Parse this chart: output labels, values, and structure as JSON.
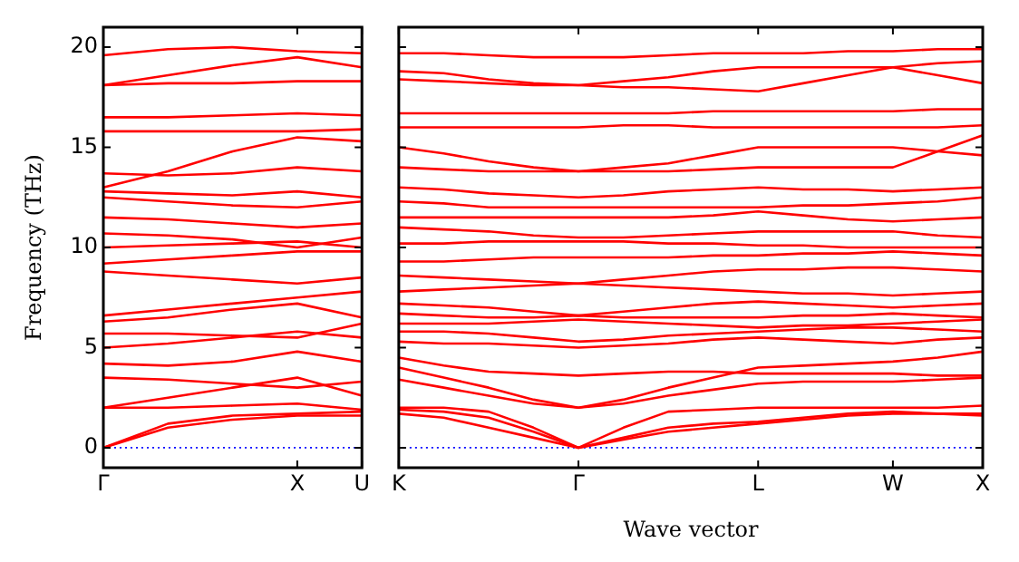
{
  "chart_data": [
    {
      "type": "line",
      "ylabel": "Frequency (THz)",
      "categories": [
        "Γ",
        null,
        null,
        "X",
        "U"
      ],
      "ylim": [
        -1,
        21
      ],
      "yticks": [
        0,
        5,
        10,
        15,
        20
      ],
      "grid": false,
      "legend": false,
      "marker": "none",
      "line_style": "solid",
      "ref_lines": [
        {
          "axis": "y",
          "value": 0,
          "color": "#0000ff",
          "line_style": "dotted"
        }
      ],
      "series": [
        {
          "color": "#ff0000",
          "values": [
            0,
            1.2,
            1.6,
            1.7,
            1.8
          ]
        },
        {
          "color": "#ff0000",
          "values": [
            0,
            1.0,
            1.4,
            1.6,
            1.6
          ]
        },
        {
          "color": "#ff0000",
          "values": [
            2.0,
            2.0,
            2.1,
            2.2,
            1.9
          ]
        },
        {
          "color": "#ff0000",
          "values": [
            2.0,
            2.5,
            3.0,
            3.5,
            2.6
          ]
        },
        {
          "color": "#ff0000",
          "values": [
            3.5,
            3.4,
            3.2,
            3.0,
            3.3
          ]
        },
        {
          "color": "#ff0000",
          "values": [
            4.2,
            4.1,
            4.3,
            4.8,
            4.3
          ]
        },
        {
          "color": "#ff0000",
          "values": [
            5.0,
            5.2,
            5.5,
            5.8,
            5.5
          ]
        },
        {
          "color": "#ff0000",
          "values": [
            5.7,
            5.7,
            5.6,
            5.5,
            6.2
          ]
        },
        {
          "color": "#ff0000",
          "values": [
            6.3,
            6.5,
            6.9,
            7.2,
            6.5
          ]
        },
        {
          "color": "#ff0000",
          "values": [
            6.6,
            6.9,
            7.2,
            7.5,
            7.8
          ]
        },
        {
          "color": "#ff0000",
          "values": [
            8.8,
            8.6,
            8.4,
            8.2,
            8.5
          ]
        },
        {
          "color": "#ff0000",
          "values": [
            9.2,
            9.4,
            9.6,
            9.8,
            9.8
          ]
        },
        {
          "color": "#ff0000",
          "values": [
            10.0,
            10.1,
            10.2,
            10.3,
            10.0
          ]
        },
        {
          "color": "#ff0000",
          "values": [
            10.7,
            10.6,
            10.4,
            10.0,
            10.5
          ]
        },
        {
          "color": "#ff0000",
          "values": [
            11.5,
            11.4,
            11.2,
            11.0,
            11.2
          ]
        },
        {
          "color": "#ff0000",
          "values": [
            12.5,
            12.3,
            12.1,
            12.0,
            12.3
          ]
        },
        {
          "color": "#ff0000",
          "values": [
            12.8,
            12.7,
            12.6,
            12.8,
            12.5
          ]
        },
        {
          "color": "#ff0000",
          "values": [
            13.7,
            13.6,
            13.7,
            14.0,
            13.8
          ]
        },
        {
          "color": "#ff0000",
          "values": [
            13.0,
            13.8,
            14.8,
            15.5,
            15.3
          ]
        },
        {
          "color": "#ff0000",
          "values": [
            15.8,
            15.8,
            15.8,
            15.8,
            15.9
          ]
        },
        {
          "color": "#ff0000",
          "values": [
            16.5,
            16.5,
            16.6,
            16.7,
            16.6
          ]
        },
        {
          "color": "#ff0000",
          "values": [
            18.1,
            18.2,
            18.2,
            18.3,
            18.3
          ]
        },
        {
          "color": "#ff0000",
          "values": [
            18.1,
            18.6,
            19.1,
            19.5,
            19.0
          ]
        },
        {
          "color": "#ff0000",
          "values": [
            19.6,
            19.9,
            20.0,
            19.8,
            19.7
          ]
        }
      ]
    },
    {
      "type": "line",
      "xlabel": "Wave vector",
      "categories": [
        "K",
        null,
        null,
        null,
        "Γ",
        null,
        null,
        null,
        "L",
        null,
        null,
        "W",
        null,
        "X"
      ],
      "ylim": [
        -1,
        21
      ],
      "yticks": [
        0,
        5,
        10,
        15,
        20
      ],
      "tick_labels": "x",
      "grid": false,
      "legend": false,
      "marker": "none",
      "line_style": "solid",
      "ref_lines": [
        {
          "axis": "y",
          "value": 0,
          "color": "#0000ff",
          "line_style": "dotted"
        }
      ],
      "series": [
        {
          "color": "#ff0000",
          "values": [
            1.7,
            1.5,
            1.0,
            0.5,
            0,
            0.4,
            0.8,
            1.0,
            1.2,
            1.4,
            1.6,
            1.7,
            1.7,
            1.7
          ]
        },
        {
          "color": "#ff0000",
          "values": [
            1.9,
            1.8,
            1.5,
            0.8,
            0,
            0.5,
            1.0,
            1.2,
            1.3,
            1.5,
            1.7,
            1.8,
            1.7,
            1.6
          ]
        },
        {
          "color": "#ff0000",
          "values": [
            2.0,
            2.0,
            1.8,
            1.0,
            0,
            1.0,
            1.8,
            1.9,
            2.0,
            2.0,
            2.0,
            2.0,
            2.0,
            2.1
          ]
        },
        {
          "color": "#ff0000",
          "values": [
            3.4,
            3.0,
            2.6,
            2.2,
            2.0,
            2.2,
            2.6,
            2.9,
            3.2,
            3.3,
            3.3,
            3.3,
            3.4,
            3.5
          ]
        },
        {
          "color": "#ff0000",
          "values": [
            4.0,
            3.5,
            3.0,
            2.4,
            2.0,
            2.4,
            3.0,
            3.5,
            4.0,
            4.1,
            4.2,
            4.3,
            4.5,
            4.8
          ]
        },
        {
          "color": "#ff0000",
          "values": [
            4.5,
            4.1,
            3.8,
            3.7,
            3.6,
            3.7,
            3.8,
            3.8,
            3.7,
            3.7,
            3.7,
            3.7,
            3.6,
            3.6
          ]
        },
        {
          "color": "#ff0000",
          "values": [
            5.3,
            5.2,
            5.2,
            5.1,
            5.0,
            5.1,
            5.2,
            5.4,
            5.5,
            5.4,
            5.3,
            5.2,
            5.4,
            5.5
          ]
        },
        {
          "color": "#ff0000",
          "values": [
            5.8,
            5.8,
            5.7,
            5.5,
            5.3,
            5.4,
            5.6,
            5.7,
            5.8,
            5.9,
            6.0,
            6.0,
            5.9,
            5.8
          ]
        },
        {
          "color": "#ff0000",
          "values": [
            6.2,
            6.2,
            6.2,
            6.3,
            6.4,
            6.3,
            6.2,
            6.1,
            6.0,
            6.1,
            6.1,
            6.2,
            6.3,
            6.4
          ]
        },
        {
          "color": "#ff0000",
          "values": [
            6.7,
            6.6,
            6.5,
            6.5,
            6.6,
            6.5,
            6.5,
            6.5,
            6.5,
            6.6,
            6.6,
            6.7,
            6.6,
            6.5
          ]
        },
        {
          "color": "#ff0000",
          "values": [
            7.2,
            7.1,
            7.0,
            6.8,
            6.6,
            6.8,
            7.0,
            7.2,
            7.3,
            7.2,
            7.1,
            7.0,
            7.1,
            7.2
          ]
        },
        {
          "color": "#ff0000",
          "values": [
            7.8,
            7.9,
            8.0,
            8.1,
            8.2,
            8.1,
            8.0,
            7.9,
            7.8,
            7.7,
            7.7,
            7.6,
            7.7,
            7.8
          ]
        },
        {
          "color": "#ff0000",
          "values": [
            8.6,
            8.5,
            8.4,
            8.3,
            8.2,
            8.4,
            8.6,
            8.8,
            8.9,
            8.9,
            9.0,
            9.0,
            8.9,
            8.8
          ]
        },
        {
          "color": "#ff0000",
          "values": [
            9.3,
            9.3,
            9.4,
            9.5,
            9.5,
            9.5,
            9.5,
            9.6,
            9.6,
            9.7,
            9.7,
            9.8,
            9.7,
            9.6
          ]
        },
        {
          "color": "#ff0000",
          "values": [
            10.2,
            10.2,
            10.3,
            10.3,
            10.3,
            10.3,
            10.2,
            10.2,
            10.1,
            10.1,
            10.0,
            10.0,
            10.0,
            10.0
          ]
        },
        {
          "color": "#ff0000",
          "values": [
            11.0,
            10.9,
            10.8,
            10.6,
            10.5,
            10.5,
            10.6,
            10.7,
            10.8,
            10.8,
            10.8,
            10.8,
            10.6,
            10.5
          ]
        },
        {
          "color": "#ff0000",
          "values": [
            11.5,
            11.5,
            11.5,
            11.5,
            11.5,
            11.5,
            11.5,
            11.6,
            11.8,
            11.6,
            11.4,
            11.3,
            11.4,
            11.5
          ]
        },
        {
          "color": "#ff0000",
          "values": [
            12.3,
            12.2,
            12.0,
            12.0,
            12.0,
            12.0,
            12.0,
            12.0,
            12.0,
            12.1,
            12.1,
            12.2,
            12.3,
            12.5
          ]
        },
        {
          "color": "#ff0000",
          "values": [
            13.0,
            12.9,
            12.7,
            12.6,
            12.5,
            12.6,
            12.8,
            12.9,
            13.0,
            12.9,
            12.9,
            12.8,
            12.9,
            13.0
          ]
        },
        {
          "color": "#ff0000",
          "values": [
            15.0,
            14.7,
            14.3,
            14.0,
            13.8,
            14.0,
            14.2,
            14.6,
            15.0,
            15.0,
            15.0,
            15.0,
            14.8,
            14.6
          ]
        },
        {
          "color": "#ff0000",
          "values": [
            14.0,
            13.9,
            13.8,
            13.8,
            13.8,
            13.8,
            13.8,
            13.9,
            14.0,
            14.0,
            14.0,
            14.0,
            14.8,
            15.6
          ]
        },
        {
          "color": "#ff0000",
          "values": [
            16.0,
            16.0,
            16.0,
            16.0,
            16.0,
            16.1,
            16.1,
            16.0,
            16.0,
            16.0,
            16.0,
            16.0,
            16.0,
            16.1
          ]
        },
        {
          "color": "#ff0000",
          "values": [
            16.7,
            16.7,
            16.7,
            16.7,
            16.7,
            16.7,
            16.7,
            16.8,
            16.8,
            16.8,
            16.8,
            16.8,
            16.9,
            16.9
          ]
        },
        {
          "color": "#ff0000",
          "values": [
            18.8,
            18.7,
            18.4,
            18.2,
            18.1,
            18.3,
            18.5,
            18.8,
            19.0,
            19.0,
            19.0,
            19.0,
            18.6,
            18.2
          ]
        },
        {
          "color": "#ff0000",
          "values": [
            18.4,
            18.3,
            18.2,
            18.1,
            18.1,
            18.0,
            18.0,
            17.9,
            17.8,
            18.2,
            18.6,
            19.0,
            19.2,
            19.3
          ]
        },
        {
          "color": "#ff0000",
          "values": [
            19.7,
            19.7,
            19.6,
            19.5,
            19.5,
            19.5,
            19.6,
            19.7,
            19.7,
            19.7,
            19.8,
            19.8,
            19.9,
            19.9
          ]
        }
      ]
    }
  ]
}
